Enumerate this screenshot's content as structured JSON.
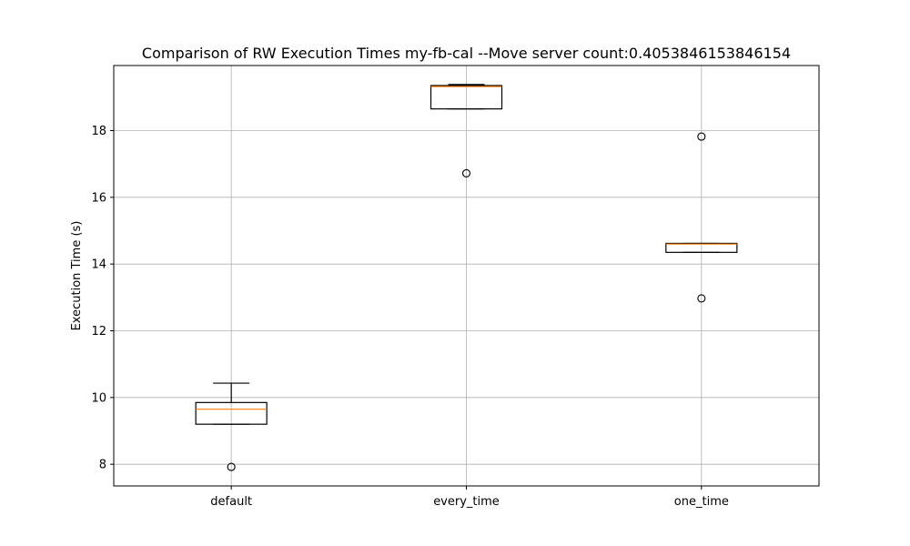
{
  "chart_data": {
    "type": "box",
    "title": "Comparison of RW Execution Times my-fb-cal --Move server count:0.4053846153846154",
    "xlabel": "",
    "ylabel": "Execution Time (s)",
    "ylim": [
      7.35,
      19.95
    ],
    "yticks": [
      8,
      10,
      12,
      14,
      16,
      18
    ],
    "grid": true,
    "categories": [
      "default",
      "every_time",
      "one_time"
    ],
    "boxes": [
      {
        "category": "default",
        "whisker_low": 9.2,
        "q1": 9.2,
        "median": 9.65,
        "q3": 9.85,
        "whisker_high": 10.43,
        "outliers": [
          7.92
        ]
      },
      {
        "category": "every_time",
        "whisker_low": 18.65,
        "q1": 18.65,
        "median": 19.32,
        "q3": 19.35,
        "whisker_high": 19.38,
        "outliers": [
          16.72
        ]
      },
      {
        "category": "one_time",
        "whisker_low": 14.35,
        "q1": 14.35,
        "median": 14.6,
        "q3": 14.62,
        "whisker_high": 14.62,
        "outliers": [
          17.82,
          12.97
        ]
      }
    ],
    "colors": {
      "box": "#000000",
      "median": "#ff7f0e",
      "grid": "#b0b0b0"
    }
  }
}
